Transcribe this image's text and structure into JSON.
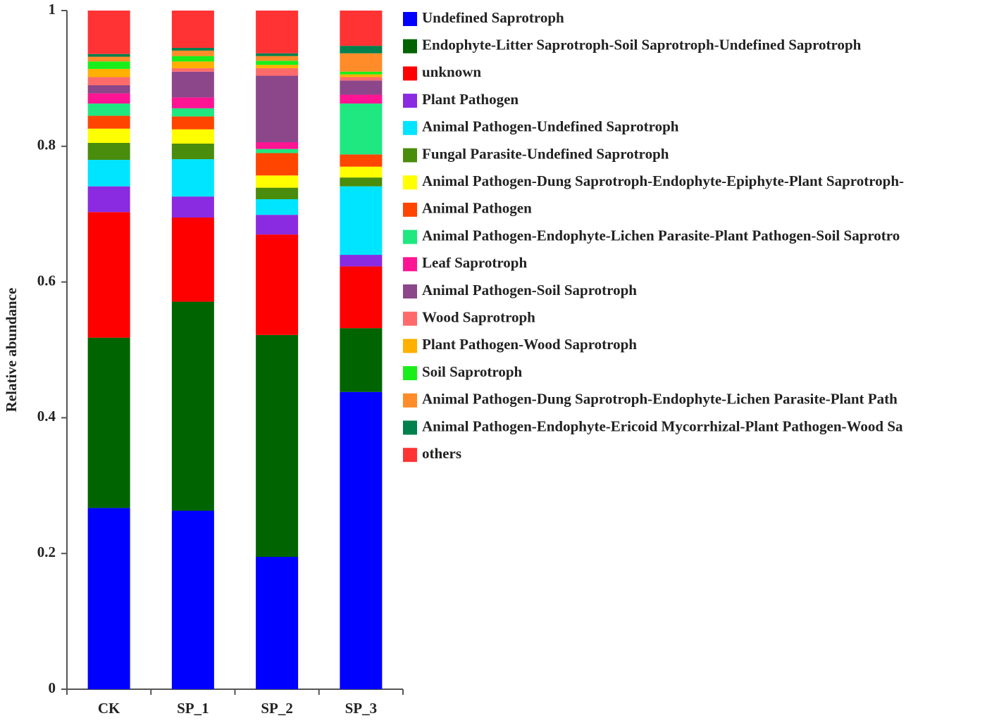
{
  "chart_data": {
    "type": "stacked_bar",
    "y_label": "Relative abundance",
    "categories": [
      "CK",
      "SP_1",
      "SP_2",
      "SP_3"
    ],
    "ylim": [
      0,
      1
    ],
    "yticks": [
      0,
      0.2,
      0.4,
      0.6,
      0.8,
      1
    ],
    "legend": "right",
    "series": [
      {
        "name": "Undefined Saprotroph",
        "color": "#0000ff",
        "values": [
          0.267,
          0.263,
          0.195,
          0.438
        ]
      },
      {
        "name": "Endophyte-Litter Saprotroph-Soil Saprotroph-Undefined Saprotroph",
        "color": "#006400",
        "values": [
          0.251,
          0.308,
          0.327,
          0.094
        ]
      },
      {
        "name": "unknown",
        "color": "#ff0000",
        "values": [
          0.185,
          0.124,
          0.148,
          0.091
        ]
      },
      {
        "name": "Plant Pathogen",
        "color": "#8a2be2",
        "values": [
          0.038,
          0.031,
          0.029,
          0.017
        ]
      },
      {
        "name": "Animal Pathogen-Undefined Saprotroph",
        "color": "#00e5ff",
        "values": [
          0.039,
          0.055,
          0.023,
          0.101
        ]
      },
      {
        "name": "Fungal Parasite-Undefined Saprotroph",
        "color": "#4a8c0c",
        "values": [
          0.025,
          0.023,
          0.017,
          0.013
        ]
      },
      {
        "name": "Animal Pathogen-Dung Saprotroph-Endophyte-Epiphyte-Plant Saprotroph-",
        "color": "#ffff00",
        "values": [
          0.021,
          0.021,
          0.018,
          0.016
        ]
      },
      {
        "name": "Animal Pathogen",
        "color": "#ff4500",
        "values": [
          0.019,
          0.019,
          0.033,
          0.018
        ]
      },
      {
        "name": "Animal Pathogen-Endophyte-Lichen Parasite-Plant Pathogen-Soil Saprotro",
        "color": "#1ee87f",
        "values": [
          0.018,
          0.012,
          0.006,
          0.075
        ]
      },
      {
        "name": "Leaf Saprotroph",
        "color": "#ff1493",
        "values": [
          0.015,
          0.016,
          0.01,
          0.013
        ]
      },
      {
        "name": "Animal Pathogen-Soil Saprotroph",
        "color": "#8b4789",
        "values": [
          0.012,
          0.038,
          0.098,
          0.021
        ]
      },
      {
        "name": "Wood Saprotroph",
        "color": "#ff6b6b",
        "values": [
          0.012,
          0.005,
          0.011,
          0.005
        ]
      },
      {
        "name": "Plant Pathogen-Wood Saprotroph",
        "color": "#ffb000",
        "values": [
          0.012,
          0.01,
          0.005,
          0.004
        ]
      },
      {
        "name": "Soil Saprotroph",
        "color": "#1aee1a",
        "values": [
          0.011,
          0.008,
          0.006,
          0.004
        ]
      },
      {
        "name": "Animal Pathogen-Dung Saprotroph-Endophyte-Lichen Parasite-Plant Path",
        "color": "#ff8c28",
        "values": [
          0.007,
          0.008,
          0.007,
          0.027
        ]
      },
      {
        "name": "Animal Pathogen-Endophyte-Ericoid Mycorrhizal-Plant Pathogen-Wood Sa",
        "color": "#00804d",
        "values": [
          0.004,
          0.004,
          0.004,
          0.011
        ]
      },
      {
        "name": "others",
        "color": "#ff3333",
        "values": [
          0.064,
          0.055,
          0.063,
          0.052
        ]
      }
    ]
  }
}
